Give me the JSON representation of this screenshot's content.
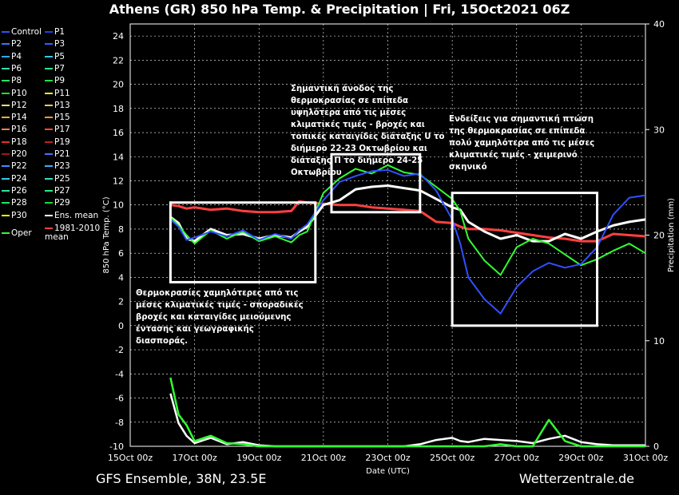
{
  "title": "Athens  (GR)  850 hPa Temp. & Precipitation | Fri, 15Oct2021 06Z",
  "footer": {
    "left": "GFS Ensemble, 38N, 23.5E",
    "right": "Wetterzentrale.de"
  },
  "legend": [
    {
      "label": "Control",
      "color": "#3050ff"
    },
    {
      "label": "P1",
      "color": "#2040e0"
    },
    {
      "label": "P2",
      "color": "#2f7cf6"
    },
    {
      "label": "P3",
      "color": "#3060ff"
    },
    {
      "label": "P4",
      "color": "#36a6ef"
    },
    {
      "label": "P5",
      "color": "#35c9e0"
    },
    {
      "label": "P6",
      "color": "#2fdcb0"
    },
    {
      "label": "P7",
      "color": "#27e88a"
    },
    {
      "label": "P8",
      "color": "#1fe860"
    },
    {
      "label": "P9",
      "color": "#16e440"
    },
    {
      "label": "P10",
      "color": "#22e020"
    },
    {
      "label": "P11",
      "color": "#f0f030"
    },
    {
      "label": "P12",
      "color": "#f8e070"
    },
    {
      "label": "P13",
      "color": "#f0d040"
    },
    {
      "label": "P14",
      "color": "#f0b030"
    },
    {
      "label": "P15",
      "color": "#f59a30"
    },
    {
      "label": "P16",
      "color": "#f08060"
    },
    {
      "label": "P17",
      "color": "#f05030"
    },
    {
      "label": "P18",
      "color": "#e03030"
    },
    {
      "label": "P19",
      "color": "#c02020"
    },
    {
      "label": "P20",
      "color": "#a01818"
    },
    {
      "label": "P21",
      "color": "#4a70ff"
    },
    {
      "label": "P22",
      "color": "#3a90ff"
    },
    {
      "label": "P23",
      "color": "#36b0ff"
    },
    {
      "label": "P24",
      "color": "#36c8e8"
    },
    {
      "label": "P25",
      "color": "#30e0c0"
    },
    {
      "label": "P26",
      "color": "#2ae8a0"
    },
    {
      "label": "P27",
      "color": "#22f080"
    },
    {
      "label": "P28",
      "color": "#1ae860"
    },
    {
      "label": "P29",
      "color": "#10e030"
    },
    {
      "label": "P30",
      "color": "#f0f000"
    },
    {
      "label": "Ens. mean",
      "color": "#ffffff"
    },
    {
      "label": "Oper",
      "color": "#30ff30"
    },
    {
      "label": "1981-2010 mean",
      "color": "#ff4040"
    }
  ],
  "annotations": [
    {
      "text": "Σημαντική άνοδος της θερμοκρασίας σε επίπεδα υψηλότερα από τις μέσες κλιματικές τιμές - βροχές και τοπικές καταιγίδες διάταξης U το διήμερο 22-23 Οκτωβρίου και διάταξης Π το διήμερο 24-25 Οκτωβρίου"
    },
    {
      "text": "Ενδείξεις για σημαντική πτώση της θερμοκρασίας σε επίπεδα πολύ χαμηλότερα από τις μέσες κλιματικές τιμές - χειμερινό σκηνικό"
    },
    {
      "text": "Θερμοκρασίες χαμηλότερες από τις μέσες κλιματικές τιμές - σποραδικές βροχές και καταιγίδες μειούμενης έντασης και γεωγραφικής διασποράς."
    }
  ],
  "colors": {
    "background": "#000000",
    "grid": "#ffffff",
    "annotation_box": "#ffffff"
  },
  "chart_data": {
    "type": "line",
    "xlabel": "Date (UTC)",
    "ylabel": "850 hPa Temp. (°C)",
    "y2label": "Precipitation (mm)",
    "ylim": [
      -10,
      25
    ],
    "y2lim": [
      0,
      40
    ],
    "yticks": [
      -10,
      -8,
      -6,
      -4,
      -2,
      0,
      2,
      4,
      6,
      8,
      10,
      12,
      14,
      16,
      18,
      20,
      22,
      24
    ],
    "y2ticks": [
      0,
      10,
      20,
      30,
      40
    ],
    "xlim": [
      "15Oct 00z",
      "31Oct 00z"
    ],
    "xticks": [
      "15Oct 00z",
      "17Oct 00z",
      "19Oct 00z",
      "21Oct 00z",
      "23Oct 00z",
      "25Oct 00z",
      "27Oct 00z",
      "29Oct 00z",
      "31Oct 00z"
    ],
    "grid": true,
    "x_days": [
      1.25,
      1.5,
      1.75,
      2.0,
      2.5,
      3.0,
      3.5,
      4.0,
      4.5,
      5.0,
      5.25,
      5.5,
      6.0,
      6.5,
      7.0,
      7.5,
      8.0,
      8.5,
      9.0,
      9.5,
      10.0,
      10.25,
      10.5,
      11.0,
      11.5,
      12.0,
      12.5,
      13.0,
      13.5,
      14.0,
      14.5,
      15.0,
      15.5,
      16.0
    ],
    "series": [
      {
        "name": "1981-2010 mean",
        "color": "#ff4040",
        "values": [
          10.0,
          9.9,
          9.7,
          9.8,
          9.6,
          9.7,
          9.5,
          9.4,
          9.4,
          9.5,
          10.3,
          10.2,
          10.1,
          10.0,
          10.0,
          9.8,
          9.7,
          9.6,
          9.5,
          8.6,
          8.5,
          8.2,
          8.0,
          8.0,
          7.9,
          7.7,
          7.5,
          7.3,
          7.2,
          7.0,
          7.0,
          7.6,
          7.5,
          7.4
        ]
      },
      {
        "name": "Ens. mean",
        "color": "#ffffff",
        "values": [
          9.0,
          8.5,
          7.2,
          7.0,
          8.0,
          7.5,
          7.6,
          7.2,
          7.5,
          7.3,
          7.8,
          8.2,
          10.0,
          10.4,
          11.3,
          11.5,
          11.6,
          11.4,
          11.2,
          10.5,
          9.8,
          9.6,
          8.6,
          7.8,
          7.2,
          7.5,
          7.0,
          7.0,
          7.6,
          7.2,
          7.8,
          8.3,
          8.6,
          8.8
        ]
      },
      {
        "name": "Oper",
        "color": "#30ff30",
        "values": [
          9.0,
          8.3,
          7.5,
          6.8,
          7.9,
          7.2,
          7.8,
          7.0,
          7.4,
          6.9,
          7.5,
          7.8,
          11.0,
          12.2,
          13.0,
          12.6,
          13.3,
          12.7,
          12.5,
          11.5,
          10.5,
          9.5,
          7.2,
          5.4,
          4.2,
          6.5,
          7.2,
          6.8,
          5.9,
          5.0,
          5.5,
          6.2,
          6.8,
          6.0
        ]
      },
      {
        "name": "Control",
        "color": "#3050ff",
        "values": [
          8.8,
          8.2,
          7.1,
          7.3,
          7.8,
          7.4,
          7.9,
          7.1,
          7.6,
          7.2,
          7.9,
          8.4,
          10.4,
          11.9,
          12.4,
          12.8,
          12.9,
          12.4,
          12.6,
          11.2,
          8.8,
          6.8,
          4.0,
          2.2,
          1.0,
          3.2,
          4.5,
          5.2,
          4.8,
          5.1,
          6.5,
          9.2,
          10.6,
          10.8
        ]
      }
    ],
    "precip_series": [
      {
        "name": "Ens. mean",
        "color": "#ffffff",
        "values": [
          5.0,
          2.2,
          1.0,
          0.3,
          0.8,
          0.2,
          0.4,
          0.1,
          0.0,
          0.0,
          0.0,
          0.0,
          0.0,
          0.0,
          0.0,
          0.0,
          0.0,
          0.0,
          0.2,
          0.6,
          0.8,
          0.5,
          0.4,
          0.7,
          0.6,
          0.5,
          0.3,
          0.7,
          1.0,
          0.4,
          0.2,
          0.1,
          0.1,
          0.1
        ]
      },
      {
        "name": "Oper",
        "color": "#30ff30",
        "values": [
          6.5,
          3.0,
          2.0,
          0.5,
          1.0,
          0.3,
          0.2,
          0.0,
          0.0,
          0.0,
          0.0,
          0.0,
          0.0,
          0.0,
          0.0,
          0.0,
          0.0,
          0.0,
          0.0,
          0.0,
          0.0,
          0.0,
          0.0,
          0.0,
          0.2,
          0.0,
          0.0,
          2.5,
          0.5,
          0.0,
          0.0,
          0.0,
          0.0,
          0.0
        ]
      }
    ],
    "annotation_boxes": [
      {
        "x": [
          1.25,
          5.75
        ],
        "y": [
          3.6,
          10.2
        ]
      },
      {
        "x": [
          6.25,
          9.0
        ],
        "y": [
          9.4,
          14.2
        ]
      },
      {
        "x": [
          10.0,
          14.5
        ],
        "y": [
          0.0,
          11.0
        ]
      }
    ]
  }
}
